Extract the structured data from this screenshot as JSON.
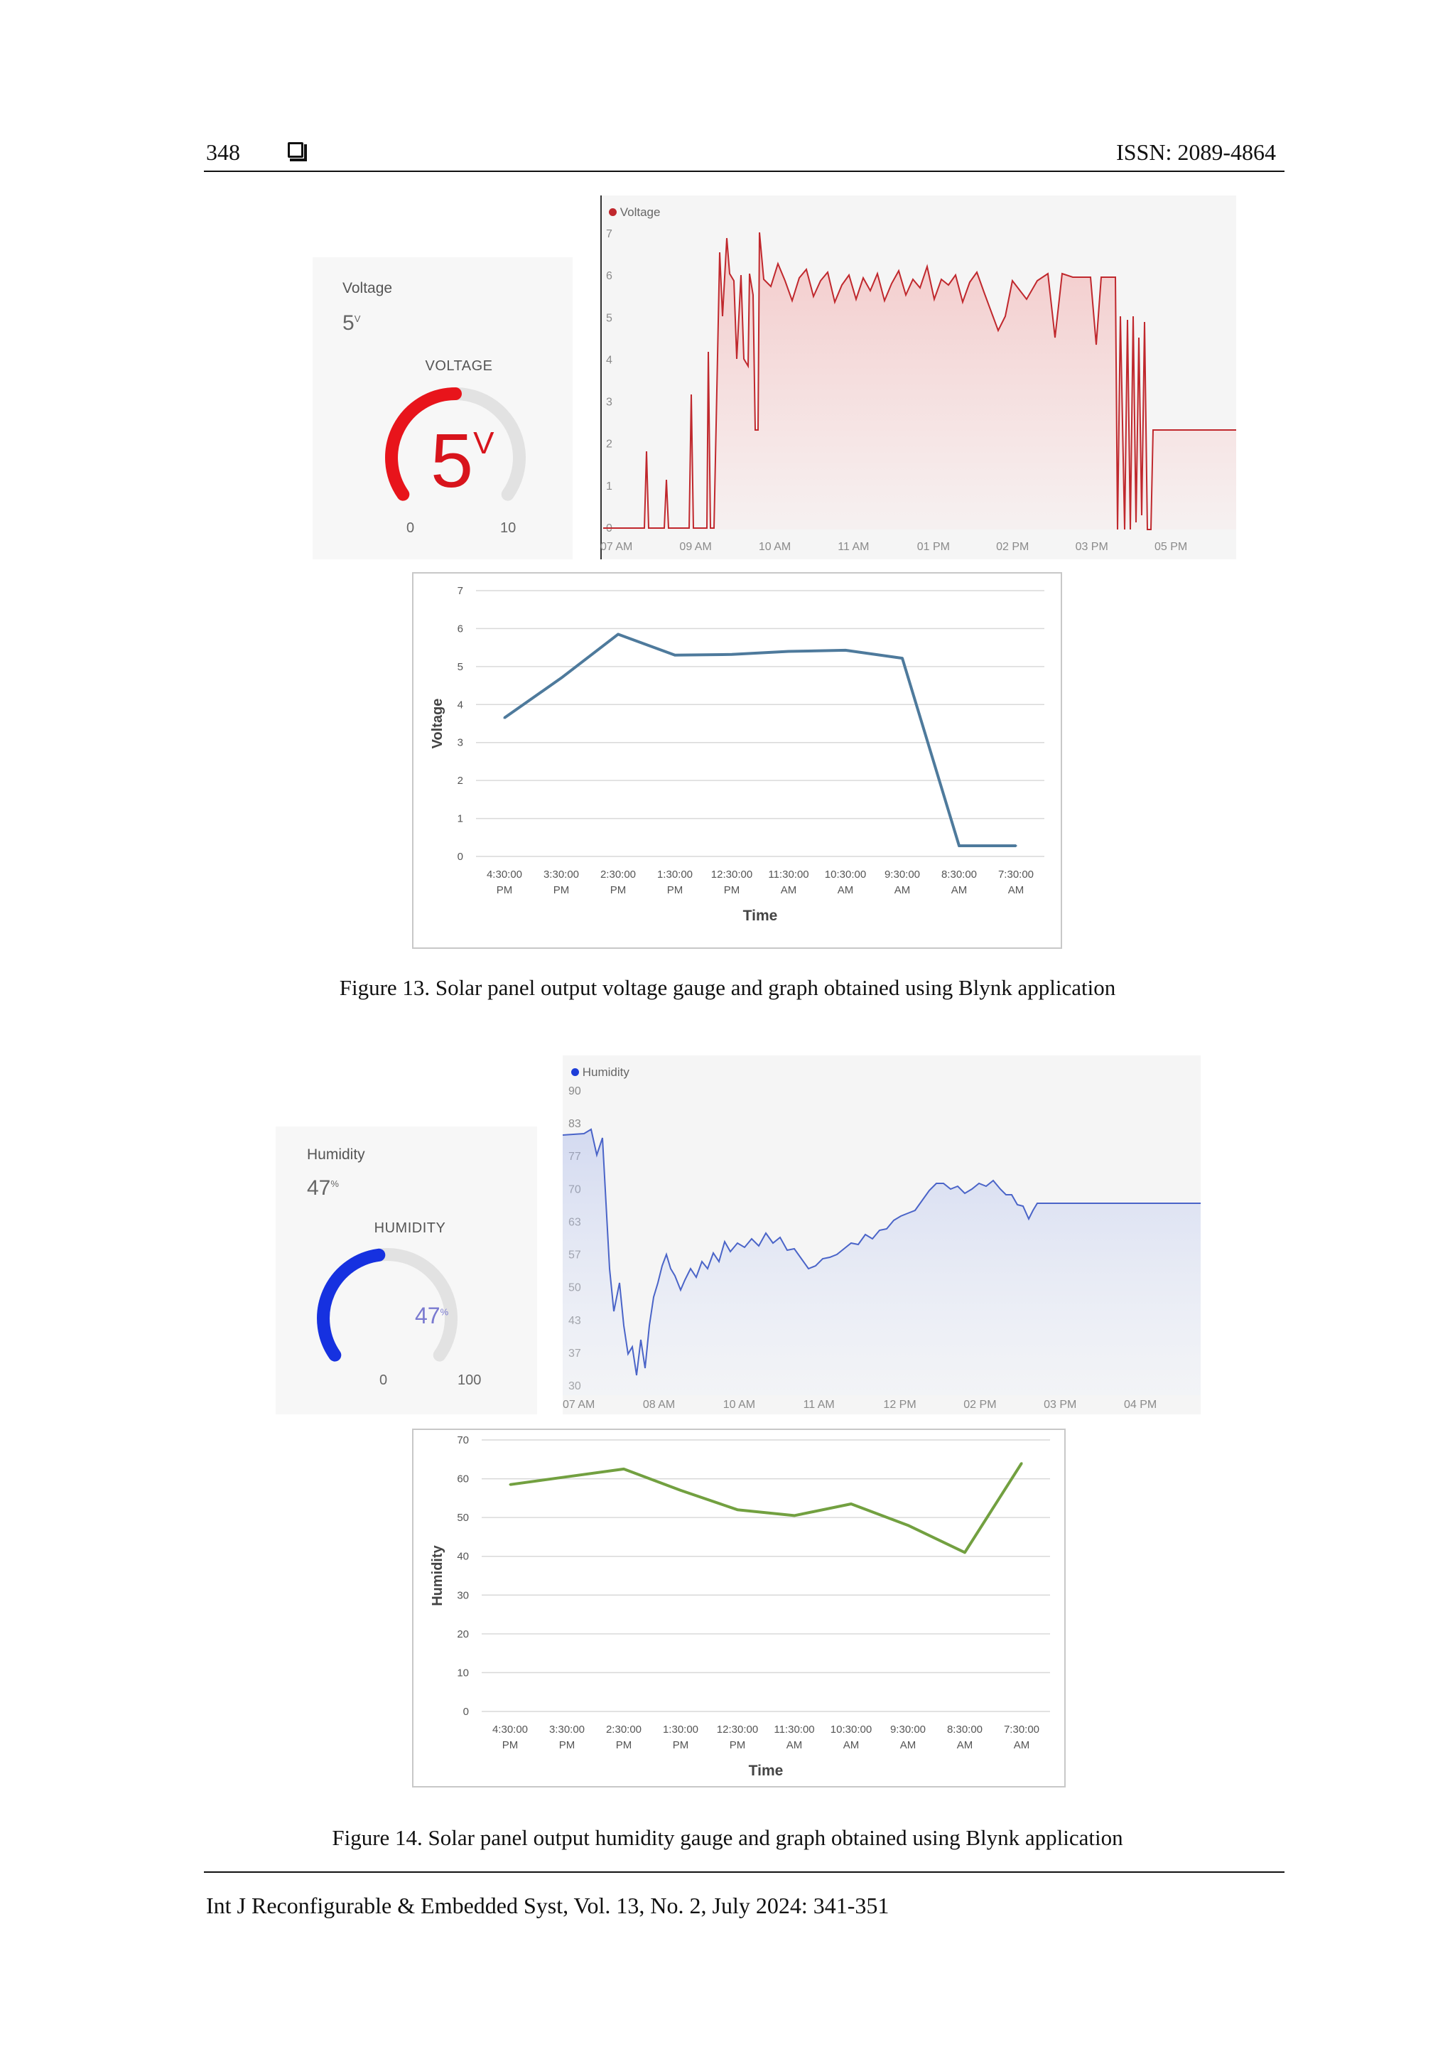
{
  "header": {
    "page_number": "348",
    "issn": "ISSN: 2089-4864"
  },
  "figure13": {
    "gauge": {
      "title": "Voltage",
      "value": "5",
      "unit": "V",
      "label": "VOLTAGE",
      "min": "0",
      "max": "10",
      "fraction": 0.5,
      "color": "#e8141b"
    },
    "blynk_chart": {
      "legend": "Voltage",
      "y_ticks": [
        "7",
        "6",
        "5",
        "4",
        "3",
        "2",
        "1",
        "0"
      ],
      "x_ticks": [
        "07 AM",
        "09 AM",
        "10 AM",
        "11 AM",
        "01 PM",
        "02 PM",
        "03 PM",
        "05 PM"
      ],
      "line_color": "#c0282d"
    },
    "caption": "Figure 13. Solar panel output voltage gauge and graph obtained using Blynk application"
  },
  "figure14": {
    "gauge": {
      "title": "Humidity",
      "value": "47",
      "unit": "%",
      "label": "HUMIDITY",
      "min": "0",
      "max": "100",
      "fraction": 0.47,
      "color": "#1631e0"
    },
    "blynk_chart": {
      "legend": "Humidity",
      "y_ticks": [
        "90",
        "83",
        "77",
        "70",
        "63",
        "57",
        "50",
        "43",
        "37",
        "30"
      ],
      "x_ticks": [
        "07 AM",
        "08 AM",
        "10 AM",
        "11 AM",
        "12 PM",
        "02 PM",
        "03 PM",
        "04 PM"
      ],
      "line_color": "#4a64c8"
    },
    "caption": "Figure 14. Solar panel output humidity gauge and graph obtained using Blynk application"
  },
  "chart_data": [
    {
      "type": "line",
      "title": "",
      "xlabel": "Time",
      "ylabel": "Voltage",
      "ylim": [
        0,
        7
      ],
      "yticks": [
        0,
        1,
        2,
        3,
        4,
        5,
        6,
        7
      ],
      "categories": [
        "4:30:00 PM",
        "3:30:00 PM",
        "2:30:00 PM",
        "1:30:00 PM",
        "12:30:00 PM",
        "11:30:00 AM",
        "10:30:00 AM",
        "9:30:00 AM",
        "8:30:00 AM",
        "7:30:00 AM"
      ],
      "series": [
        {
          "values": [
            3.65,
            4.7,
            5.85,
            5.3,
            5.32,
            5.4,
            5.43,
            5.22,
            0.28,
            0.28
          ],
          "color": "#4e7a9c"
        }
      ],
      "grid": true
    },
    {
      "type": "line",
      "title": "",
      "xlabel": "Time",
      "ylabel": "Humidity",
      "ylim": [
        0,
        70
      ],
      "yticks": [
        0,
        10,
        20,
        30,
        40,
        50,
        60,
        70
      ],
      "categories": [
        "4:30:00 PM",
        "3:30:00 PM",
        "2:30:00 PM",
        "1:30:00 PM",
        "12:30:00 PM",
        "11:30:00 AM",
        "10:30:00 AM",
        "9:30:00 AM",
        "8:30:00 AM",
        "7:30:00 AM"
      ],
      "series": [
        {
          "values": [
            58.5,
            60.5,
            62.5,
            57,
            52,
            50.5,
            53.5,
            48,
            41,
            64
          ],
          "color": "#72a040"
        }
      ],
      "grid": true
    }
  ],
  "footer": {
    "citation": "Int J Reconfigurable & Embedded Syst, Vol. 13, No. 2, July 2024: 341-351"
  }
}
